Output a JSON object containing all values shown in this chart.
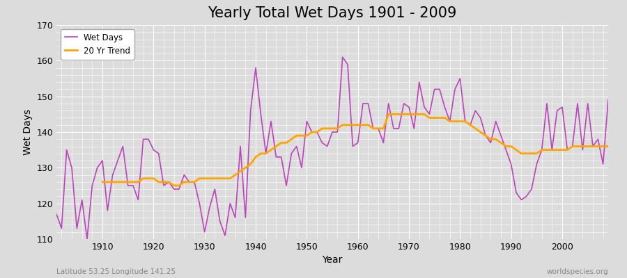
{
  "title": "Yearly Total Wet Days 1901 - 2009",
  "xlabel": "Year",
  "ylabel": "Wet Days",
  "xlim": [
    1901,
    2009
  ],
  "ylim": [
    110,
    170
  ],
  "yticks": [
    110,
    120,
    130,
    140,
    150,
    160,
    170
  ],
  "xticks": [
    1910,
    1920,
    1930,
    1940,
    1950,
    1960,
    1970,
    1980,
    1990,
    2000
  ],
  "wet_days_color": "#BB44BB",
  "trend_color": "#FFA500",
  "bg_color": "#DCDCDC",
  "grid_color": "#FFFFFF",
  "title_fontsize": 15,
  "label_fontsize": 10,
  "subtitle_left": "Latitude 53.25 Longitude 141.25",
  "subtitle_right": "worldspecies.org",
  "years": [
    1901,
    1902,
    1903,
    1904,
    1905,
    1906,
    1907,
    1908,
    1909,
    1910,
    1911,
    1912,
    1913,
    1914,
    1915,
    1916,
    1917,
    1918,
    1919,
    1920,
    1921,
    1922,
    1923,
    1924,
    1925,
    1926,
    1927,
    1928,
    1929,
    1930,
    1931,
    1932,
    1933,
    1934,
    1935,
    1936,
    1937,
    1938,
    1939,
    1940,
    1941,
    1942,
    1943,
    1944,
    1945,
    1946,
    1947,
    1948,
    1949,
    1950,
    1951,
    1952,
    1953,
    1954,
    1955,
    1956,
    1957,
    1958,
    1959,
    1960,
    1961,
    1962,
    1963,
    1964,
    1965,
    1966,
    1967,
    1968,
    1969,
    1970,
    1971,
    1972,
    1973,
    1974,
    1975,
    1976,
    1977,
    1978,
    1979,
    1980,
    1981,
    1982,
    1983,
    1984,
    1985,
    1986,
    1987,
    1988,
    1989,
    1990,
    1991,
    1992,
    1993,
    1994,
    1995,
    1996,
    1997,
    1998,
    1999,
    2000,
    2001,
    2002,
    2003,
    2004,
    2005,
    2006,
    2007,
    2008,
    2009
  ],
  "wet_days": [
    117,
    113,
    135,
    130,
    113,
    121,
    110,
    125,
    130,
    132,
    118,
    128,
    132,
    136,
    125,
    125,
    121,
    138,
    138,
    135,
    134,
    125,
    126,
    124,
    124,
    128,
    126,
    126,
    120,
    112,
    119,
    124,
    115,
    111,
    120,
    116,
    136,
    116,
    146,
    158,
    145,
    134,
    143,
    133,
    133,
    125,
    134,
    136,
    130,
    143,
    140,
    140,
    137,
    136,
    140,
    140,
    161,
    159,
    136,
    137,
    148,
    148,
    141,
    141,
    137,
    148,
    141,
    141,
    148,
    147,
    141,
    154,
    147,
    145,
    152,
    152,
    147,
    143,
    152,
    155,
    143,
    142,
    146,
    144,
    139,
    137,
    143,
    139,
    135,
    131,
    123,
    121,
    122,
    124,
    131,
    135,
    148,
    135,
    146,
    147,
    135,
    136,
    148,
    135,
    148,
    136,
    138,
    131,
    149
  ],
  "trend": [
    null,
    null,
    null,
    null,
    null,
    null,
    null,
    null,
    null,
    126,
    126,
    126,
    126,
    126,
    126,
    126,
    126,
    127,
    127,
    127,
    126,
    126,
    126,
    125,
    125,
    126,
    126,
    126,
    127,
    127,
    127,
    127,
    127,
    127,
    127,
    128,
    129,
    130,
    131,
    133,
    134,
    134,
    135,
    136,
    137,
    137,
    138,
    139,
    139,
    139,
    140,
    140,
    141,
    141,
    141,
    141,
    142,
    142,
    142,
    142,
    142,
    142,
    141,
    141,
    141,
    145,
    145,
    145,
    145,
    145,
    145,
    145,
    145,
    144,
    144,
    144,
    144,
    143,
    143,
    143,
    143,
    142,
    141,
    140,
    139,
    138,
    138,
    137,
    136,
    136,
    135,
    134,
    134,
    134,
    134,
    135,
    135,
    135,
    135,
    135,
    135,
    136,
    136,
    136,
    136,
    136,
    136,
    136,
    136
  ]
}
